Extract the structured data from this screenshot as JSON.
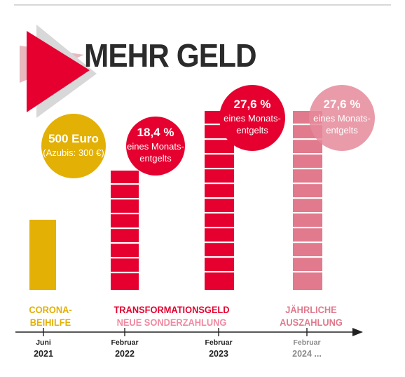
{
  "headline": "MEHR GELD",
  "colors": {
    "corona": "#e3b005",
    "transformation": "#e5002f",
    "annual": "#e07a8c",
    "bubble_annual": "#e58a9a",
    "headline": "#2b2b2b"
  },
  "chart_data": {
    "type": "bar",
    "categories": [
      "Juni 2021",
      "Februar 2022",
      "Februar 2023",
      "Februar 2024 ..."
    ],
    "values": [
      1,
      1.7,
      2.55,
      2.55
    ],
    "bubbles": [
      {
        "value": "500 Euro",
        "sub": "(Azubis: 300 €)"
      },
      {
        "value": "18,4 %",
        "sub": "eines Monats-\nentgelts"
      },
      {
        "value": "27,6 %",
        "sub": "eines Monats-\nentgelts"
      },
      {
        "value": "27,6 %",
        "sub": "eines Monats-\nentgelts"
      }
    ],
    "ticks": [
      {
        "month": "Juni",
        "year": "2021"
      },
      {
        "month": "Februar",
        "year": "2022"
      },
      {
        "month": "Februar",
        "year": "2023"
      },
      {
        "month": "Februar",
        "year": "2024 ..."
      }
    ],
    "labels": {
      "corona": [
        "CORONA-",
        "BEIHILFE"
      ],
      "transformation": [
        "TRANSFORMATIONSGELD",
        "NEUE SONDERZAHLUNG"
      ],
      "annual": [
        "JÄHRLICHE",
        "AUSZAHLUNG"
      ]
    }
  }
}
